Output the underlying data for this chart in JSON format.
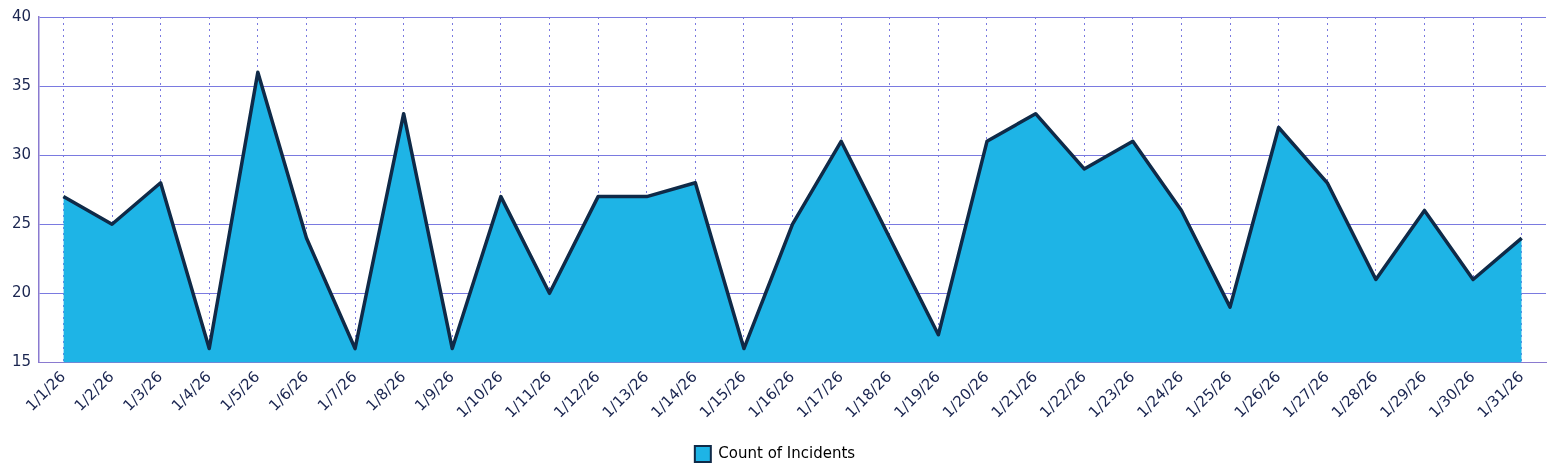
{
  "chart_data": {
    "type": "area",
    "categories": [
      "1/1/26",
      "1/2/26",
      "1/3/26",
      "1/4/26",
      "1/5/26",
      "1/6/26",
      "1/7/26",
      "1/8/26",
      "1/9/26",
      "1/10/26",
      "1/11/26",
      "1/12/26",
      "1/13/26",
      "1/14/26",
      "1/15/26",
      "1/16/26",
      "1/17/26",
      "1/18/26",
      "1/19/26",
      "1/20/26",
      "1/21/26",
      "1/22/26",
      "1/23/26",
      "1/24/26",
      "1/25/26",
      "1/26/26",
      "1/27/26",
      "1/28/26",
      "1/29/26",
      "1/30/26",
      "1/31/26"
    ],
    "series": [
      {
        "name": "Count of Incidents",
        "color": "#1eb4e6",
        "values": [
          27,
          25,
          28,
          16,
          36,
          24,
          16,
          33,
          16,
          27,
          20,
          27,
          27,
          28,
          16,
          25,
          31,
          24,
          17,
          31,
          33,
          29,
          31,
          26,
          19,
          32,
          28,
          21,
          26,
          21,
          24
        ]
      }
    ],
    "ylim": [
      15,
      40
    ],
    "yticks": [
      15,
      20,
      25,
      30,
      35,
      40
    ],
    "grid": true,
    "legend": "bottom",
    "marker": "none",
    "line_style": "solid"
  }
}
